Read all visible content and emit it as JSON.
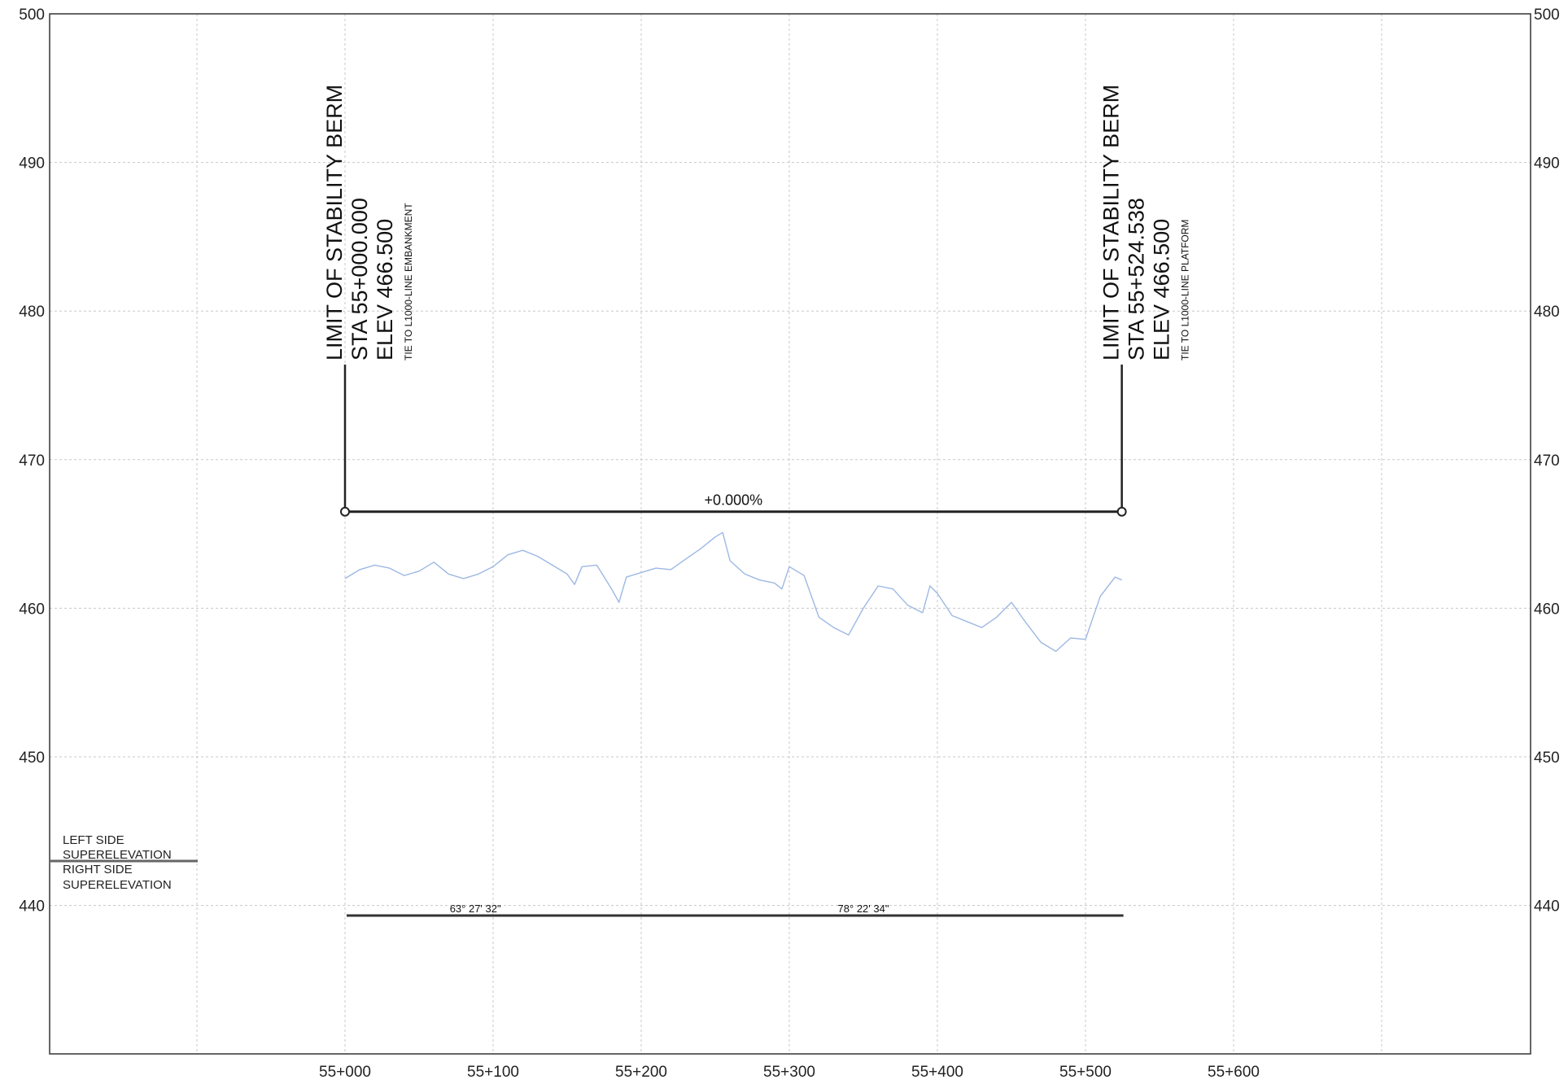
{
  "chart_data": {
    "type": "line",
    "title": "",
    "xlabel": "",
    "ylabel": "",
    "x_tick_labels": [
      "55+000",
      "55+100",
      "55+200",
      "55+300",
      "55+400",
      "55+500",
      "55+600"
    ],
    "x_tick_values": [
      0,
      100,
      200,
      300,
      400,
      500,
      600
    ],
    "y_ticks": [
      440,
      450,
      460,
      470,
      480,
      490,
      500
    ],
    "xlim": [
      -200,
      800
    ],
    "ylim": [
      430,
      500
    ],
    "grid": true,
    "series": [
      {
        "color": "#9db8e3",
        "x": [
          0,
          10,
          20,
          30,
          40,
          50,
          60,
          70,
          80,
          90,
          100,
          110,
          120,
          130,
          140,
          150,
          155,
          160,
          170,
          180,
          185,
          190,
          200,
          210,
          220,
          230,
          240,
          250,
          255,
          260,
          270,
          280,
          290,
          295,
          300,
          310,
          320,
          330,
          340,
          350,
          360,
          370,
          380,
          390,
          395,
          400,
          410,
          420,
          430,
          440,
          450,
          460,
          470,
          480,
          490,
          500,
          510,
          520,
          524.538
        ],
        "values": [
          462.0,
          462.6,
          462.9,
          462.7,
          462.2,
          462.5,
          463.1,
          462.3,
          462.0,
          462.3,
          462.8,
          463.6,
          463.9,
          463.5,
          462.9,
          462.3,
          461.6,
          462.8,
          462.9,
          461.3,
          460.4,
          462.1,
          462.4,
          462.7,
          462.6,
          463.3,
          464.0,
          464.8,
          465.1,
          463.2,
          462.3,
          461.9,
          461.7,
          461.3,
          462.8,
          462.2,
          459.4,
          458.7,
          458.2,
          460.0,
          461.5,
          461.3,
          460.2,
          459.7,
          461.5,
          461.0,
          459.5,
          459.1,
          458.7,
          459.4,
          460.4,
          459.0,
          457.7,
          457.1,
          458.0,
          457.9,
          460.8,
          462.1,
          461.9
        ]
      },
      {
        "color": "#222222",
        "x": [
          0,
          524.538
        ],
        "values": [
          466.5,
          466.5
        ]
      }
    ]
  },
  "annotations": {
    "left_callout": {
      "line1": "LIMIT OF STABILITY BERM",
      "line2": "STA  55+000.000",
      "line3": "ELEV 466.500",
      "line4": "TIE TO L1000-LINE EMBANKMENT",
      "station": 0,
      "elev": 466.5
    },
    "right_callout": {
      "line1": "LIMIT OF STABILITY BERM",
      "line2": "STA  55+524.538",
      "line3": "ELEV 466.500",
      "line4": "TIE TO L1000-LINE PLATFORM",
      "station": 524.538,
      "elev": 466.5
    },
    "grade_label": "+0.000%",
    "angle_labels": [
      {
        "text": "63° 27' 32\"",
        "station": 88
      },
      {
        "text": "78° 22' 34\"",
        "station": 350
      }
    ],
    "superelevation": {
      "left_side_line1": "LEFT SIDE",
      "left_side_line2": "SUPERELEVATION",
      "right_side_line1": "RIGHT SIDE",
      "right_side_line2": "SUPERELEVATION"
    }
  }
}
